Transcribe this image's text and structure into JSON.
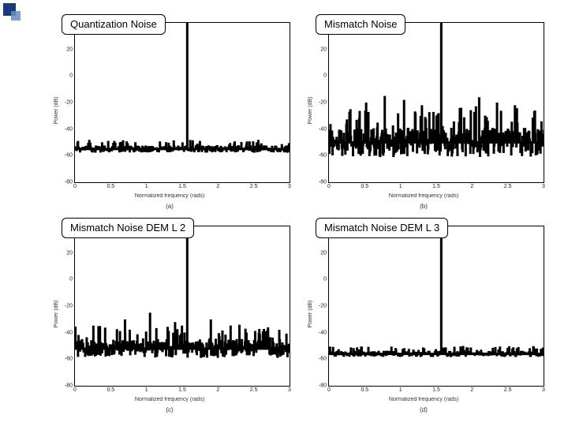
{
  "decoration": {
    "square1_color": "#1a3a7a",
    "square2_color": "#6b8bc4"
  },
  "common": {
    "ylabel": "Power (dB)",
    "xlabel": "Normalized frequency (rads)",
    "ylim": [
      -80,
      40
    ],
    "yticks": [
      40,
      20,
      0,
      -20,
      -40,
      -60,
      -80
    ],
    "xlim": [
      0,
      3.0
    ],
    "xticks": [
      0,
      0.5,
      1,
      1.5,
      2,
      2.5,
      3
    ],
    "background_color": "#ffffff",
    "axis_color": "#000000",
    "line_color": "#000000",
    "line_width": 0.5,
    "tick_fontsize": 7,
    "label_fontsize": 7,
    "title_fontsize": 13,
    "signal_freq": 1.57,
    "signal_db": 40,
    "noise_floor_db": -55
  },
  "panels": [
    {
      "title": "Quantization Noise",
      "subfig": "(a)",
      "noise_floor": -55,
      "spike_span": 7,
      "extra_spikes": []
    },
    {
      "title": "Mismatch Noise",
      "subfig": "(b)",
      "noise_floor": -50,
      "spike_span": 28,
      "extra_spikes": [
        [
          0.3,
          -25
        ],
        [
          0.52,
          -20
        ],
        [
          0.78,
          -15
        ],
        [
          1.05,
          -18
        ],
        [
          1.3,
          -22
        ],
        [
          1.83,
          -24
        ],
        [
          2.1,
          -16
        ],
        [
          2.35,
          -20
        ],
        [
          2.6,
          -22
        ],
        [
          2.88,
          -26
        ]
      ]
    },
    {
      "title": "Mismatch Noise DEM L 2",
      "subfig": "(c)",
      "noise_floor": -52,
      "spike_span": 18,
      "extra_spikes": [
        [
          0.35,
          -35
        ],
        [
          0.7,
          -30
        ],
        [
          1.05,
          -25
        ],
        [
          1.4,
          -32
        ],
        [
          1.9,
          -30
        ],
        [
          2.3,
          -34
        ],
        [
          2.7,
          -36
        ]
      ]
    },
    {
      "title": "Mismatch Noise DEM L 3",
      "subfig": "(d)",
      "noise_floor": -56,
      "spike_span": 6,
      "extra_spikes": []
    }
  ]
}
